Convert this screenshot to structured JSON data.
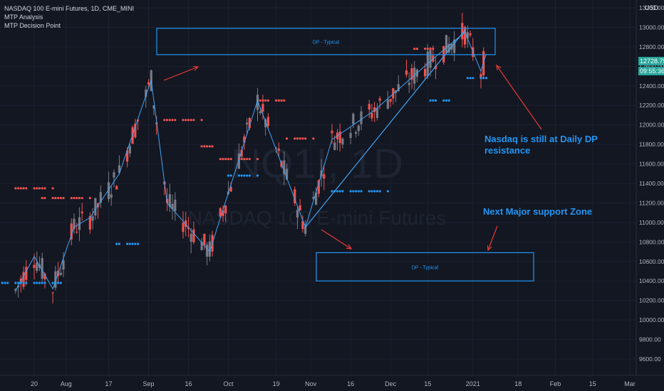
{
  "legend": {
    "symbol_line": "NASDAQ 100 E-mini Futures, 1D, CME_MINI",
    "indicator_1": "MTP Analysis",
    "indicator_2": "MTP Decision Point"
  },
  "currency": "USD",
  "watermark": {
    "ticker": "NQ1!, 1D",
    "name": "NASDAQ 100 E-mini Futures"
  },
  "price_labels": {
    "last": "12728.75",
    "countdown": "09:55:36"
  },
  "annotations": {
    "resistance_note": "Nasdaq is still at Daily DP resistance",
    "support_note": "Next Major support Zone"
  },
  "zones": [
    {
      "label": "DP - Typical",
      "kind": "resistance",
      "ymin": 12720,
      "ymax": 12990
    },
    {
      "label": "DP - Typical",
      "kind": "support",
      "ymin": 10400,
      "ymax": 10690
    }
  ],
  "colors": {
    "background": "#131722",
    "up": "#787b86",
    "down": "#ef5350",
    "zone": "#2196f3",
    "arrow": "#e53935",
    "trendline": "#42a5f5",
    "sell_dots": "#ef5350",
    "buy_dots": "#2196f3",
    "price_label_bg": "#26a69a"
  },
  "chart_data": {
    "type": "candlestick",
    "title": "NASDAQ 100 E-mini Futures, 1D, CME_MINI",
    "ylim": [
      9500,
      13300
    ],
    "y_ticks": [
      "9600.00",
      "9800.00",
      "10000.00",
      "10200.00",
      "10400.00",
      "10600.00",
      "10800.00",
      "11000.00",
      "11200.00",
      "11400.00",
      "11600.00",
      "11800.00",
      "12000.00",
      "12200.00",
      "12400.00",
      "12600.00",
      "12800.00",
      "13000.00",
      "13200.00"
    ],
    "x_ticks": [
      "20",
      "Aug",
      "17",
      "Sep",
      "16",
      "Oct",
      "19",
      "Nov",
      "16",
      "Dec",
      "15",
      "2021",
      "18",
      "Feb",
      "15",
      "Mar"
    ],
    "pivots": [
      {
        "date": "2020-07-13",
        "price": 10300
      },
      {
        "date": "2020-07-20",
        "price": 10650
      },
      {
        "date": "2020-07-27",
        "price": 10320
      },
      {
        "date": "2020-08-04",
        "price": 10950
      },
      {
        "date": "2020-08-10",
        "price": 11050
      },
      {
        "date": "2020-08-21",
        "price": 11500
      },
      {
        "date": "2020-09-02",
        "price": 12460
      },
      {
        "date": "2020-09-08",
        "price": 11200
      },
      {
        "date": "2020-09-24",
        "price": 10700
      },
      {
        "date": "2020-10-12",
        "price": 12250
      },
      {
        "date": "2020-10-30",
        "price": 10950
      },
      {
        "date": "2020-11-09",
        "price": 11850
      },
      {
        "date": "2020-11-25",
        "price": 12150
      },
      {
        "date": "2020-12-18",
        "price": 12700
      },
      {
        "date": "2020-12-29",
        "price": 12950
      },
      {
        "date": "2021-01-04",
        "price": 12550
      },
      {
        "date": "2021-01-06",
        "price": 12728.75
      }
    ],
    "sell_dot_levels": [
      {
        "from": "2020-07-13",
        "to": "2020-07-27",
        "price": 11350
      },
      {
        "from": "2020-07-23",
        "to": "2020-08-10",
        "price": 11250
      },
      {
        "from": "2020-09-07",
        "to": "2020-09-21",
        "price": 12050
      },
      {
        "from": "2020-09-21",
        "to": "2020-09-25",
        "price": 11780
      },
      {
        "from": "2020-09-28",
        "to": "2020-10-12",
        "price": 11650
      },
      {
        "from": "2020-10-13",
        "to": "2020-10-22",
        "price": 12250
      },
      {
        "from": "2020-10-23",
        "to": "2020-11-02",
        "price": 11860
      },
      {
        "from": "2020-12-10",
        "to": "2020-12-17",
        "price": 12780
      }
    ],
    "buy_dot_levels": [
      {
        "from": "2020-07-08",
        "to": "2020-07-30",
        "price": 10380
      },
      {
        "from": "2020-08-20",
        "to": "2020-08-28",
        "price": 10780
      },
      {
        "from": "2020-10-01",
        "to": "2020-10-12",
        "price": 11480
      },
      {
        "from": "2020-11-09",
        "to": "2020-11-30",
        "price": 11320
      },
      {
        "from": "2020-12-16",
        "to": "2020-12-23",
        "price": 12250
      },
      {
        "from": "2020-12-30",
        "to": "2021-01-06",
        "price": 12480
      }
    ]
  }
}
